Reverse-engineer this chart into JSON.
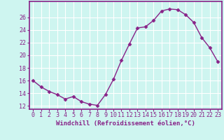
{
  "x": [
    0,
    1,
    2,
    3,
    4,
    5,
    6,
    7,
    8,
    9,
    10,
    11,
    12,
    13,
    14,
    15,
    16,
    17,
    18,
    19,
    20,
    21,
    22,
    23
  ],
  "y": [
    16.0,
    15.0,
    14.3,
    13.8,
    13.1,
    13.5,
    12.7,
    12.3,
    12.1,
    13.8,
    16.2,
    19.2,
    21.8,
    24.3,
    24.5,
    25.5,
    27.0,
    27.3,
    27.2,
    26.4,
    25.2,
    22.8,
    21.2,
    19.0
  ],
  "line_color": "#882288",
  "marker": "D",
  "marker_size": 2.5,
  "bg_color": "#cef5f0",
  "grid_color": "#ffffff",
  "xlabel": "Windchill (Refroidissement éolien,°C)",
  "xlabel_color": "#882288",
  "tick_color": "#882288",
  "ylim": [
    11.5,
    28.5
  ],
  "xlim": [
    -0.5,
    23.5
  ],
  "yticks": [
    12,
    14,
    16,
    18,
    20,
    22,
    24,
    26
  ],
  "xticks": [
    0,
    1,
    2,
    3,
    4,
    5,
    6,
    7,
    8,
    9,
    10,
    11,
    12,
    13,
    14,
    15,
    16,
    17,
    18,
    19,
    20,
    21,
    22,
    23
  ],
  "spine_color": "#882288",
  "label_fontsize": 6.5,
  "tick_fontsize": 6
}
